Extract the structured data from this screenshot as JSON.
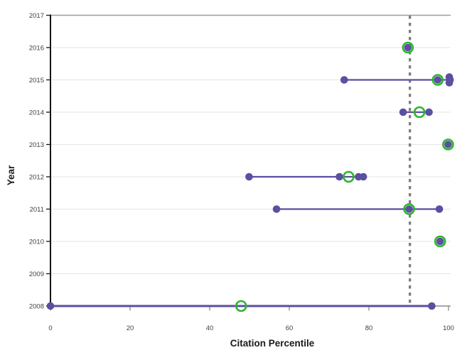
{
  "chart_data": {
    "type": "scatter",
    "subtype": "dumbbell-dot-plot",
    "title": "",
    "xlabel": "Citation Percentile",
    "ylabel": "Year",
    "x_ticks": [
      0,
      20,
      40,
      60,
      80,
      100
    ],
    "y_ticks": [
      2008,
      2009,
      2010,
      2011,
      2012,
      2013,
      2014,
      2015,
      2016,
      2017
    ],
    "xlim": [
      0,
      100.5
    ],
    "ylim": [
      2008,
      2017
    ],
    "grid": "horizontal-light",
    "legend": "none",
    "reference_line": {
      "x": 90.3,
      "orientation": "vertical",
      "style": "dashed"
    },
    "series": [
      {
        "year": 2017,
        "line": null,
        "dots": [],
        "rings": []
      },
      {
        "year": 2016,
        "line": null,
        "dots": [
          89.8
        ],
        "rings": [
          89.8
        ]
      },
      {
        "year": 2015,
        "line": [
          73.8,
          100.4
        ],
        "dots": [
          73.8,
          97.3,
          {
            "x": 100.2,
            "dy": -4
          },
          {
            "x": 100.4,
            "dy": 0
          },
          {
            "x": 100.2,
            "dy": 4
          }
        ],
        "rings": [
          97.3
        ]
      },
      {
        "year": 2014,
        "line": [
          88.6,
          95.1
        ],
        "dots": [
          88.6,
          95.1
        ],
        "rings": [
          92.7
        ]
      },
      {
        "year": 2013,
        "line": null,
        "dots": [
          99.9
        ],
        "rings": [
          99.9
        ]
      },
      {
        "year": 2012,
        "line": [
          49.9,
          78.6
        ],
        "dots": [
          49.9,
          72.6,
          77.4,
          78.6
        ],
        "rings": [
          74.9
        ]
      },
      {
        "year": 2011,
        "line": [
          56.8,
          97.7
        ],
        "dots": [
          56.8,
          90.1,
          97.7
        ],
        "rings": [
          90.1
        ]
      },
      {
        "year": 2010,
        "line": null,
        "dots": [
          97.9
        ],
        "rings": [
          97.9
        ]
      },
      {
        "year": 2009,
        "line": null,
        "dots": [],
        "rings": []
      },
      {
        "year": 2008,
        "line": [
          0,
          95.8
        ],
        "dots": [
          0,
          95.8
        ],
        "rings": [
          47.9
        ]
      }
    ],
    "colors": {
      "dot": "#5a4fa1",
      "range_line": "#5a4fa1",
      "ring": "#2cb52c",
      "reference_line": "#7a7a7a",
      "gridline": "#e4e4e4",
      "top_border": "#9c9c9c",
      "y_axis": "#141414",
      "x_axis": "#8a8a8a",
      "tick_text": "#3f3f3f"
    }
  }
}
